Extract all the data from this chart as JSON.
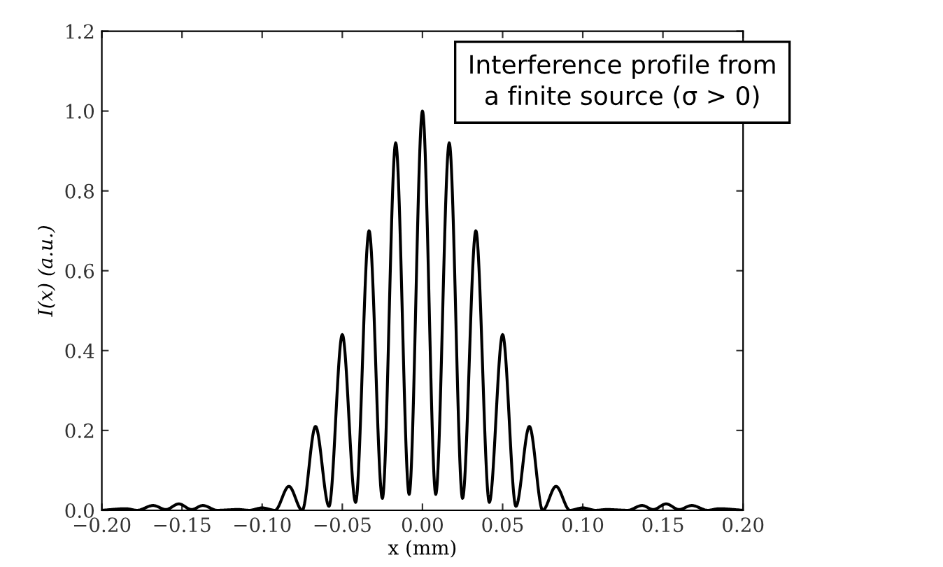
{
  "chart_data": {
    "type": "line",
    "xlabel": "x (mm)",
    "ylabel": "I(x) (a.u.)",
    "annotations": [
      "Interference profile from\na finite source (σ > 0)"
    ],
    "series": [
      {
        "color": "#000000",
        "x": [
          -0.2,
          -0.185,
          -0.178,
          -0.168,
          -0.16,
          -0.152,
          -0.144,
          -0.137,
          -0.128,
          -0.115,
          -0.108,
          -0.1,
          -0.092,
          -0.0833,
          -0.075,
          -0.0667,
          -0.0583,
          -0.05,
          -0.0417,
          -0.0333,
          -0.025,
          -0.0167,
          -0.0083,
          0,
          0.0083,
          0.0167,
          0.025,
          0.0333,
          0.0417,
          0.05,
          0.0583,
          0.0667,
          0.075,
          0.0833,
          0.092,
          0.1,
          0.108,
          0.115,
          0.128,
          0.137,
          0.144,
          0.152,
          0.16,
          0.168,
          0.178,
          0.185,
          0.2
        ],
        "values": [
          0,
          0.004,
          0,
          0.012,
          0.002,
          0.016,
          0.002,
          0.012,
          0,
          0.002,
          0,
          0.006,
          0,
          0.06,
          0,
          0.21,
          0.01,
          0.44,
          0.02,
          0.7,
          0.03,
          0.92,
          0.04,
          1.0,
          0.04,
          0.92,
          0.03,
          0.7,
          0.02,
          0.44,
          0.01,
          0.21,
          0,
          0.06,
          0,
          0.006,
          0,
          0.002,
          0,
          0.012,
          0.002,
          0.016,
          0.002,
          0.012,
          0,
          0.004,
          0
        ]
      }
    ],
    "xlim": [
      -0.2,
      0.2
    ],
    "xticks": [
      {
        "value": -0.2,
        "label": "−0.20"
      },
      {
        "value": -0.15,
        "label": "−0.15"
      },
      {
        "value": -0.1,
        "label": "−0.10"
      },
      {
        "value": -0.05,
        "label": "−0.05"
      },
      {
        "value": 0,
        "label": "0.00"
      },
      {
        "value": 0.05,
        "label": "0.05"
      },
      {
        "value": 0.1,
        "label": "0.10"
      },
      {
        "value": 0.15,
        "label": "0.15"
      },
      {
        "value": 0.2,
        "label": "0.20"
      }
    ],
    "ylim": [
      0,
      1.2
    ],
    "yticks": [
      {
        "value": 0,
        "label": "0.0"
      },
      {
        "value": 0.2,
        "label": "0.2"
      },
      {
        "value": 0.4,
        "label": "0.4"
      },
      {
        "value": 0.6,
        "label": "0.6"
      },
      {
        "value": 0.8,
        "label": "0.8"
      },
      {
        "value": 1.0,
        "label": "1.0"
      },
      {
        "value": 1.2,
        "label": "1.2"
      }
    ],
    "grid": false,
    "legend": false,
    "marker": "none",
    "line_style": "solid"
  }
}
